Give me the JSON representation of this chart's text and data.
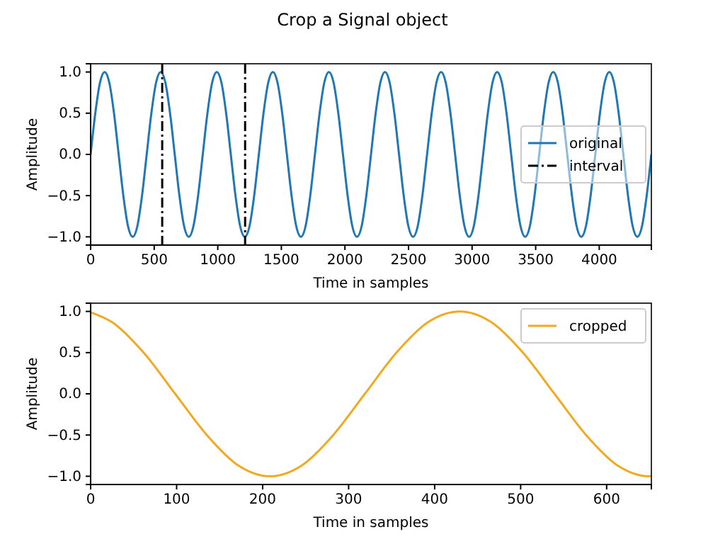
{
  "chart_data": [
    {
      "type": "line",
      "title": "Crop a Signal object",
      "xlabel": "Time in samples",
      "ylabel": "Amplitude",
      "x": [
        0,
        36.75,
        73.5,
        110.25,
        147,
        183.75,
        220.5,
        257.25,
        294,
        330.75,
        367.5,
        404.25,
        441,
        477.75,
        514.5,
        551.25,
        588,
        624.75,
        661.5,
        698.25,
        735,
        771.75,
        808.5,
        845.25,
        882,
        918.75,
        955.5,
        992.25,
        1029,
        1065.75,
        1102.5,
        1139.25,
        1176,
        1212.75,
        1249.5,
        1286.25,
        1323,
        1359.75,
        1396.5,
        1433.25,
        1470,
        1506.75,
        1543.5,
        1580.25,
        1617,
        1653.75,
        1690.5,
        1727.25,
        1764,
        1800.75,
        1837.5,
        1874.25,
        1911,
        1947.75,
        1984.5,
        2021.25,
        2058,
        2094.75,
        2131.5,
        2168.25,
        2205,
        2241.75,
        2278.5,
        2315.25,
        2352,
        2388.75,
        2425.5,
        2462.25,
        2499,
        2535.75,
        2572.5,
        2609.25,
        2646,
        2682.75,
        2719.5,
        2756.25,
        2793,
        2829.75,
        2866.5,
        2903.25,
        2940,
        2976.75,
        3013.5,
        3050.25,
        3087,
        3123.75,
        3160.5,
        3197.25,
        3234,
        3270.75,
        3307.5,
        3344.25,
        3381,
        3417.75,
        3454.5,
        3491.25,
        3528,
        3564.75,
        3601.5,
        3638.25,
        3675,
        3711.75,
        3748.5,
        3785.25,
        3822,
        3858.75,
        3895.5,
        3932.25,
        3969,
        4005.75,
        4042.5,
        4079.25,
        4116,
        4152.75,
        4189.5,
        4226.25,
        4263,
        4299.75,
        4336.5,
        4373.25,
        4410
      ],
      "series": [
        {
          "name": "original",
          "color": "#1f77b4",
          "values": [
            0,
            0.5,
            0.87,
            1,
            0.87,
            0.5,
            0,
            -0.5,
            -0.87,
            -1,
            -0.87,
            -0.5,
            0,
            0.5,
            0.87,
            1,
            0.87,
            0.5,
            0,
            -0.5,
            -0.87,
            -1,
            -0.87,
            -0.5,
            0,
            0.5,
            0.87,
            1,
            0.87,
            0.5,
            0,
            -0.5,
            -0.87,
            -1,
            -0.87,
            -0.5,
            0,
            0.5,
            0.87,
            1,
            0.87,
            0.5,
            0,
            -0.5,
            -0.87,
            -1,
            -0.87,
            -0.5,
            0,
            0.5,
            0.87,
            1,
            0.87,
            0.5,
            0,
            -0.5,
            -0.87,
            -1,
            -0.87,
            -0.5,
            0,
            0.5,
            0.87,
            1,
            0.87,
            0.5,
            0,
            -0.5,
            -0.87,
            -1,
            -0.87,
            -0.5,
            0,
            0.5,
            0.87,
            1,
            0.87,
            0.5,
            0,
            -0.5,
            -0.87,
            -1,
            -0.87,
            -0.5,
            0,
            0.5,
            0.87,
            1,
            0.87,
            0.5,
            0,
            -0.5,
            -0.87,
            -1,
            -0.87,
            -0.5,
            0,
            0.5,
            0.87,
            1,
            0.87,
            0.5,
            0,
            -0.5,
            -0.87,
            -1,
            -0.87,
            -0.5,
            0,
            0.5,
            0.87,
            1,
            0.87,
            0.5,
            0,
            -0.5,
            -0.87,
            -1,
            -0.87,
            -0.5,
            0
          ]
        }
      ],
      "ref_lines": [
        {
          "axis": "x",
          "value": 563,
          "label": "interval",
          "color": "#000000",
          "line_style": "dashdot"
        },
        {
          "axis": "x",
          "value": 1215,
          "color": "#000000",
          "line_style": "dashdot"
        }
      ],
      "xlim": [
        0,
        4410
      ],
      "xticks": [
        0,
        500,
        1000,
        1500,
        2000,
        2500,
        3000,
        3500,
        4000
      ],
      "ylim": [
        -1.1,
        1.1
      ],
      "yticks": [
        {
          "value": -1,
          "label": "−1.0"
        },
        {
          "value": -0.5,
          "label": "−0.5"
        },
        {
          "value": 0,
          "label": "0.0"
        },
        {
          "value": 0.5,
          "label": "0.5"
        },
        {
          "value": 1,
          "label": "1.0"
        }
      ],
      "legend": "right",
      "grid": false
    },
    {
      "type": "line",
      "xlabel": "Time in samples",
      "ylabel": "Amplitude",
      "x": [
        0,
        24.85,
        61.6,
        98.35,
        135.1,
        171.85,
        208.6,
        245.35,
        282.1,
        318.85,
        355.6,
        392.35,
        429.1,
        465.85,
        502.6,
        539.35,
        576.1,
        612.85,
        649.6,
        652
      ],
      "series": [
        {
          "name": "cropped",
          "color": "#f2a922",
          "values": [
            0.99,
            0.87,
            0.5,
            0,
            -0.5,
            -0.87,
            -1,
            -0.87,
            -0.5,
            0,
            0.5,
            0.87,
            1,
            0.87,
            0.5,
            0,
            -0.5,
            -0.87,
            -1,
            -1
          ]
        }
      ],
      "xlim": [
        0,
        652
      ],
      "xticks": [
        0,
        100,
        200,
        300,
        400,
        500,
        600
      ],
      "ylim": [
        -1.1,
        1.1
      ],
      "yticks": [
        {
          "value": -1,
          "label": "−1.0"
        },
        {
          "value": -0.5,
          "label": "−0.5"
        },
        {
          "value": 0,
          "label": "0.0"
        },
        {
          "value": 0.5,
          "label": "0.5"
        },
        {
          "value": 1,
          "label": "1.0"
        }
      ],
      "legend": "top right",
      "grid": false
    }
  ]
}
